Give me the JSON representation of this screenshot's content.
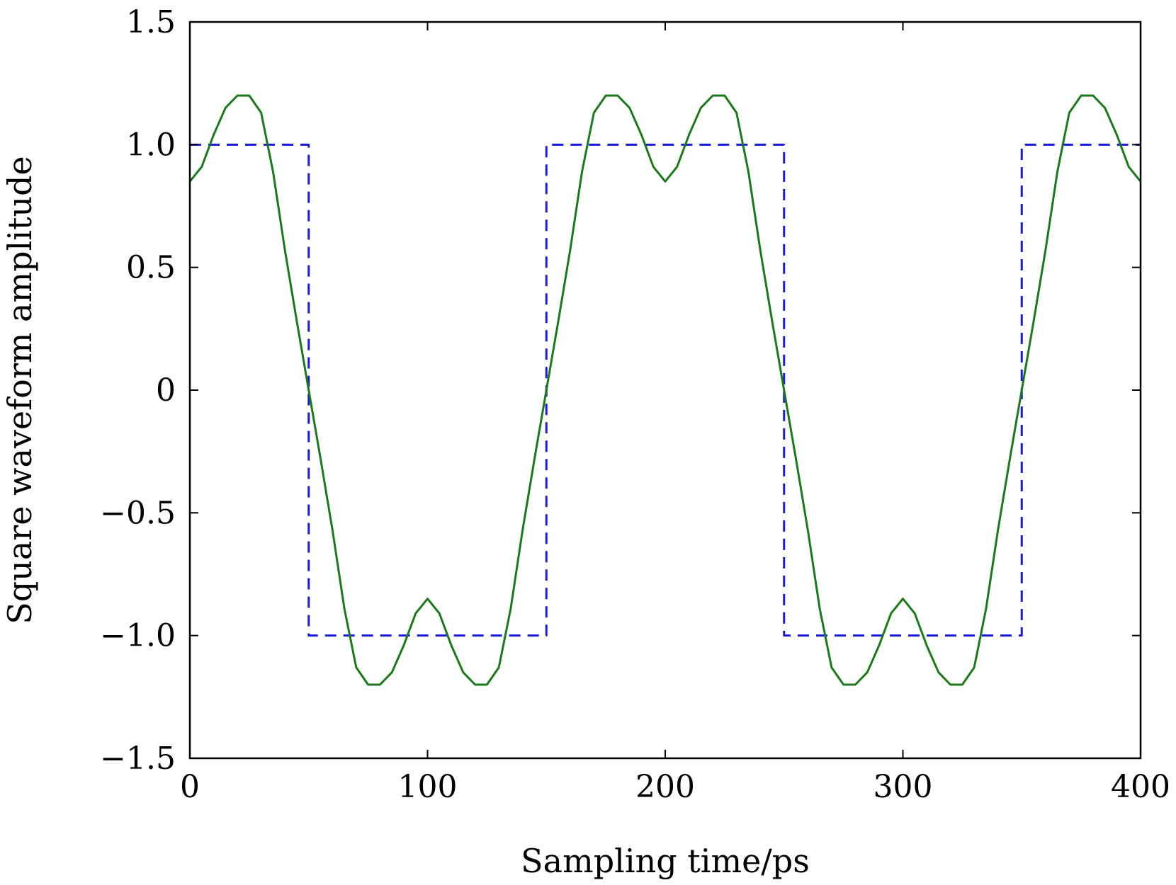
{
  "chart_data": {
    "type": "line",
    "title": "",
    "xlabel": "Sampling time/ps",
    "ylabel": "Square waveform amplitude",
    "xlim": [
      0,
      400
    ],
    "ylim": [
      -1.5,
      1.5
    ],
    "xticks": [
      0,
      100,
      200,
      300,
      400
    ],
    "xtick_labels": [
      "0",
      "100",
      "200",
      "300",
      "400"
    ],
    "yticks": [
      1.5,
      1.0,
      0.5,
      0,
      -0.5,
      -1.0,
      -1.5
    ],
    "ytick_labels": [
      "1.5",
      "1.0",
      "0.5",
      "0",
      "−0.5",
      "−1.0",
      "−1.5"
    ],
    "grid": false,
    "legend": "none",
    "series": [
      {
        "style": "dashed",
        "color": "#1a1adb",
        "x": [
          0,
          50,
          50,
          150,
          150,
          250,
          250,
          350,
          350,
          400
        ],
        "y": [
          1,
          1,
          -1,
          -1,
          1,
          1,
          -1,
          -1,
          1,
          1
        ]
      },
      {
        "style": "solid",
        "color": "#1a7a1a",
        "x": [
          0,
          5,
          10,
          15,
          20,
          25,
          30,
          35,
          40,
          45,
          50,
          55,
          60,
          65,
          70,
          75,
          80,
          85,
          90,
          95,
          100,
          105,
          110,
          115,
          120,
          125,
          130,
          135,
          140,
          145,
          150,
          155,
          160,
          165,
          170,
          175,
          180,
          185,
          190,
          195,
          200,
          205,
          210,
          215,
          220,
          225,
          230,
          235,
          240,
          245,
          250,
          255,
          260,
          265,
          270,
          275,
          280,
          285,
          290,
          295,
          300,
          305,
          310,
          315,
          320,
          325,
          330,
          335,
          340,
          345,
          350,
          355,
          360,
          365,
          370,
          375,
          380,
          385,
          390,
          395,
          400
        ],
        "y": [
          0.85,
          0.91,
          1.04,
          1.15,
          1.2,
          1.2,
          1.13,
          0.89,
          0.57,
          0.28,
          0.0,
          -0.28,
          -0.57,
          -0.89,
          -1.13,
          -1.2,
          -1.2,
          -1.15,
          -1.04,
          -0.91,
          -0.85,
          -0.91,
          -1.04,
          -1.15,
          -1.2,
          -1.2,
          -1.13,
          -0.89,
          -0.57,
          -0.28,
          0.0,
          0.28,
          0.57,
          0.89,
          1.13,
          1.2,
          1.2,
          1.15,
          1.04,
          0.91,
          0.85,
          0.91,
          1.04,
          1.15,
          1.2,
          1.2,
          1.13,
          0.89,
          0.57,
          0.28,
          0.0,
          -0.28,
          -0.57,
          -0.89,
          -1.13,
          -1.2,
          -1.2,
          -1.15,
          -1.04,
          -0.91,
          -0.85,
          -0.91,
          -1.04,
          -1.15,
          -1.2,
          -1.2,
          -1.13,
          -0.89,
          -0.57,
          -0.28,
          0.0,
          0.28,
          0.57,
          0.89,
          1.13,
          1.2,
          1.2,
          1.15,
          1.04,
          0.91,
          0.85
        ]
      }
    ]
  }
}
